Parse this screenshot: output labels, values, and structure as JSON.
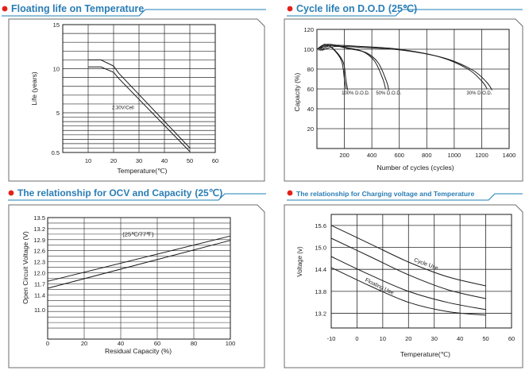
{
  "chart_data": [
    {
      "type": "line",
      "title": "Floating life on Temperature",
      "xlabel": "Temperature(℃)",
      "ylabel": "Life (years)",
      "x_ticks": [
        "10",
        "20",
        "30",
        "40",
        "50",
        "60"
      ],
      "y_ticks": [
        "15",
        "10",
        "5",
        "0.5"
      ],
      "xlim": [
        0,
        60
      ],
      "ylim": [
        0.5,
        15
      ],
      "annotations": [
        "2.30V/Cell"
      ],
      "series": [
        {
          "name": "2.30V/Cell upper",
          "x": [
            10,
            15,
            20,
            22,
            50
          ],
          "y": [
            11.0,
            11.0,
            10.3,
            9.5,
            1.0
          ]
        },
        {
          "name": "2.30V/Cell lower",
          "x": [
            10,
            15,
            20,
            22,
            50
          ],
          "y": [
            10.2,
            10.2,
            9.6,
            8.9,
            0.6
          ]
        }
      ]
    },
    {
      "type": "line",
      "title": "Cycle life on D.O.D",
      "title_suffix": "(25℃)",
      "xlabel": "Number of cycles (cycles)",
      "ylabel": "Capacity (%)",
      "x_ticks": [
        "0",
        "200",
        "400",
        "600",
        "800",
        "1000",
        "1200",
        "1400"
      ],
      "y_ticks": [
        "120",
        "100",
        "80",
        "60",
        "40",
        "20"
      ],
      "xlim": [
        0,
        1400
      ],
      "ylim": [
        0,
        120
      ],
      "annotations": [
        "100% D.O.D.",
        "50% D.O.D.",
        "30% D.O.D."
      ],
      "series": [
        {
          "name": "100% D.O.D.",
          "x": [
            0,
            60,
            120,
            180,
            200,
            212
          ],
          "y": [
            100,
            105,
            100,
            88,
            70,
            60
          ]
        },
        {
          "name": "50% D.O.D.",
          "x": [
            0,
            80,
            200,
            330,
            420,
            480,
            500
          ],
          "y": [
            100,
            105,
            102,
            98,
            88,
            70,
            60
          ]
        },
        {
          "name": "30% D.O.D.",
          "x": [
            0,
            100,
            300,
            600,
            900,
            1100,
            1200,
            1240
          ],
          "y": [
            100,
            104,
            103,
            100,
            92,
            80,
            68,
            60
          ]
        }
      ]
    },
    {
      "type": "line",
      "title": "The relationship  for OCV and Capacity",
      "title_suffix": "(25℃)",
      "xlabel": "Residual Capacity (%)",
      "ylabel": "Open Circuit Voltage (V)",
      "x_ticks": [
        "0",
        "20",
        "40",
        "60",
        "80",
        "100"
      ],
      "y_ticks": [
        "13.5",
        "13.2",
        "12.9",
        "12.6",
        "12.3",
        "12.0",
        "11.7",
        "11.4",
        "11.0"
      ],
      "xlim": [
        0,
        100
      ],
      "ylim": [
        10.2,
        13.5
      ],
      "annotations": [
        "(25℃/77℉)"
      ],
      "series": [
        {
          "name": "upper",
          "x": [
            0,
            100
          ],
          "y": [
            11.77,
            13.0
          ]
        },
        {
          "name": "lower",
          "x": [
            0,
            100
          ],
          "y": [
            11.58,
            12.88
          ]
        }
      ]
    },
    {
      "type": "line",
      "title": "The relationship for Charging voltage and Temperature",
      "xlabel": "Temperature(℃)",
      "ylabel": "Voltage (v)",
      "x_ticks": [
        "-10",
        "0",
        "10",
        "20",
        "30",
        "40",
        "50",
        "60"
      ],
      "y_ticks": [
        "15.6",
        "15.0",
        "14.4",
        "13.8",
        "13.2"
      ],
      "xlim": [
        -10,
        60
      ],
      "ylim": [
        12.8,
        15.9
      ],
      "annotations": [
        "Cycle Use",
        "Floating Use"
      ],
      "series": [
        {
          "name": "Cycle Use upper",
          "x": [
            -10,
            5,
            20,
            35,
            50
          ],
          "y": [
            15.6,
            15.1,
            14.6,
            14.2,
            13.95
          ]
        },
        {
          "name": "Cycle Use lower",
          "x": [
            -10,
            5,
            20,
            35,
            50
          ],
          "y": [
            15.25,
            14.75,
            14.25,
            13.85,
            13.6
          ]
        },
        {
          "name": "Floating Use upper",
          "x": [
            -10,
            5,
            20,
            35,
            50
          ],
          "y": [
            14.75,
            14.25,
            13.8,
            13.5,
            13.3
          ]
        },
        {
          "name": "Floating Use lower",
          "x": [
            -10,
            5,
            20,
            35,
            50
          ],
          "y": [
            14.45,
            13.95,
            13.5,
            13.25,
            13.15
          ]
        }
      ]
    }
  ],
  "colors": {
    "accent": "#1e7fb6",
    "bullet": "#e32119",
    "title_text": "#2a7db5",
    "line": "#1a1a1a"
  }
}
